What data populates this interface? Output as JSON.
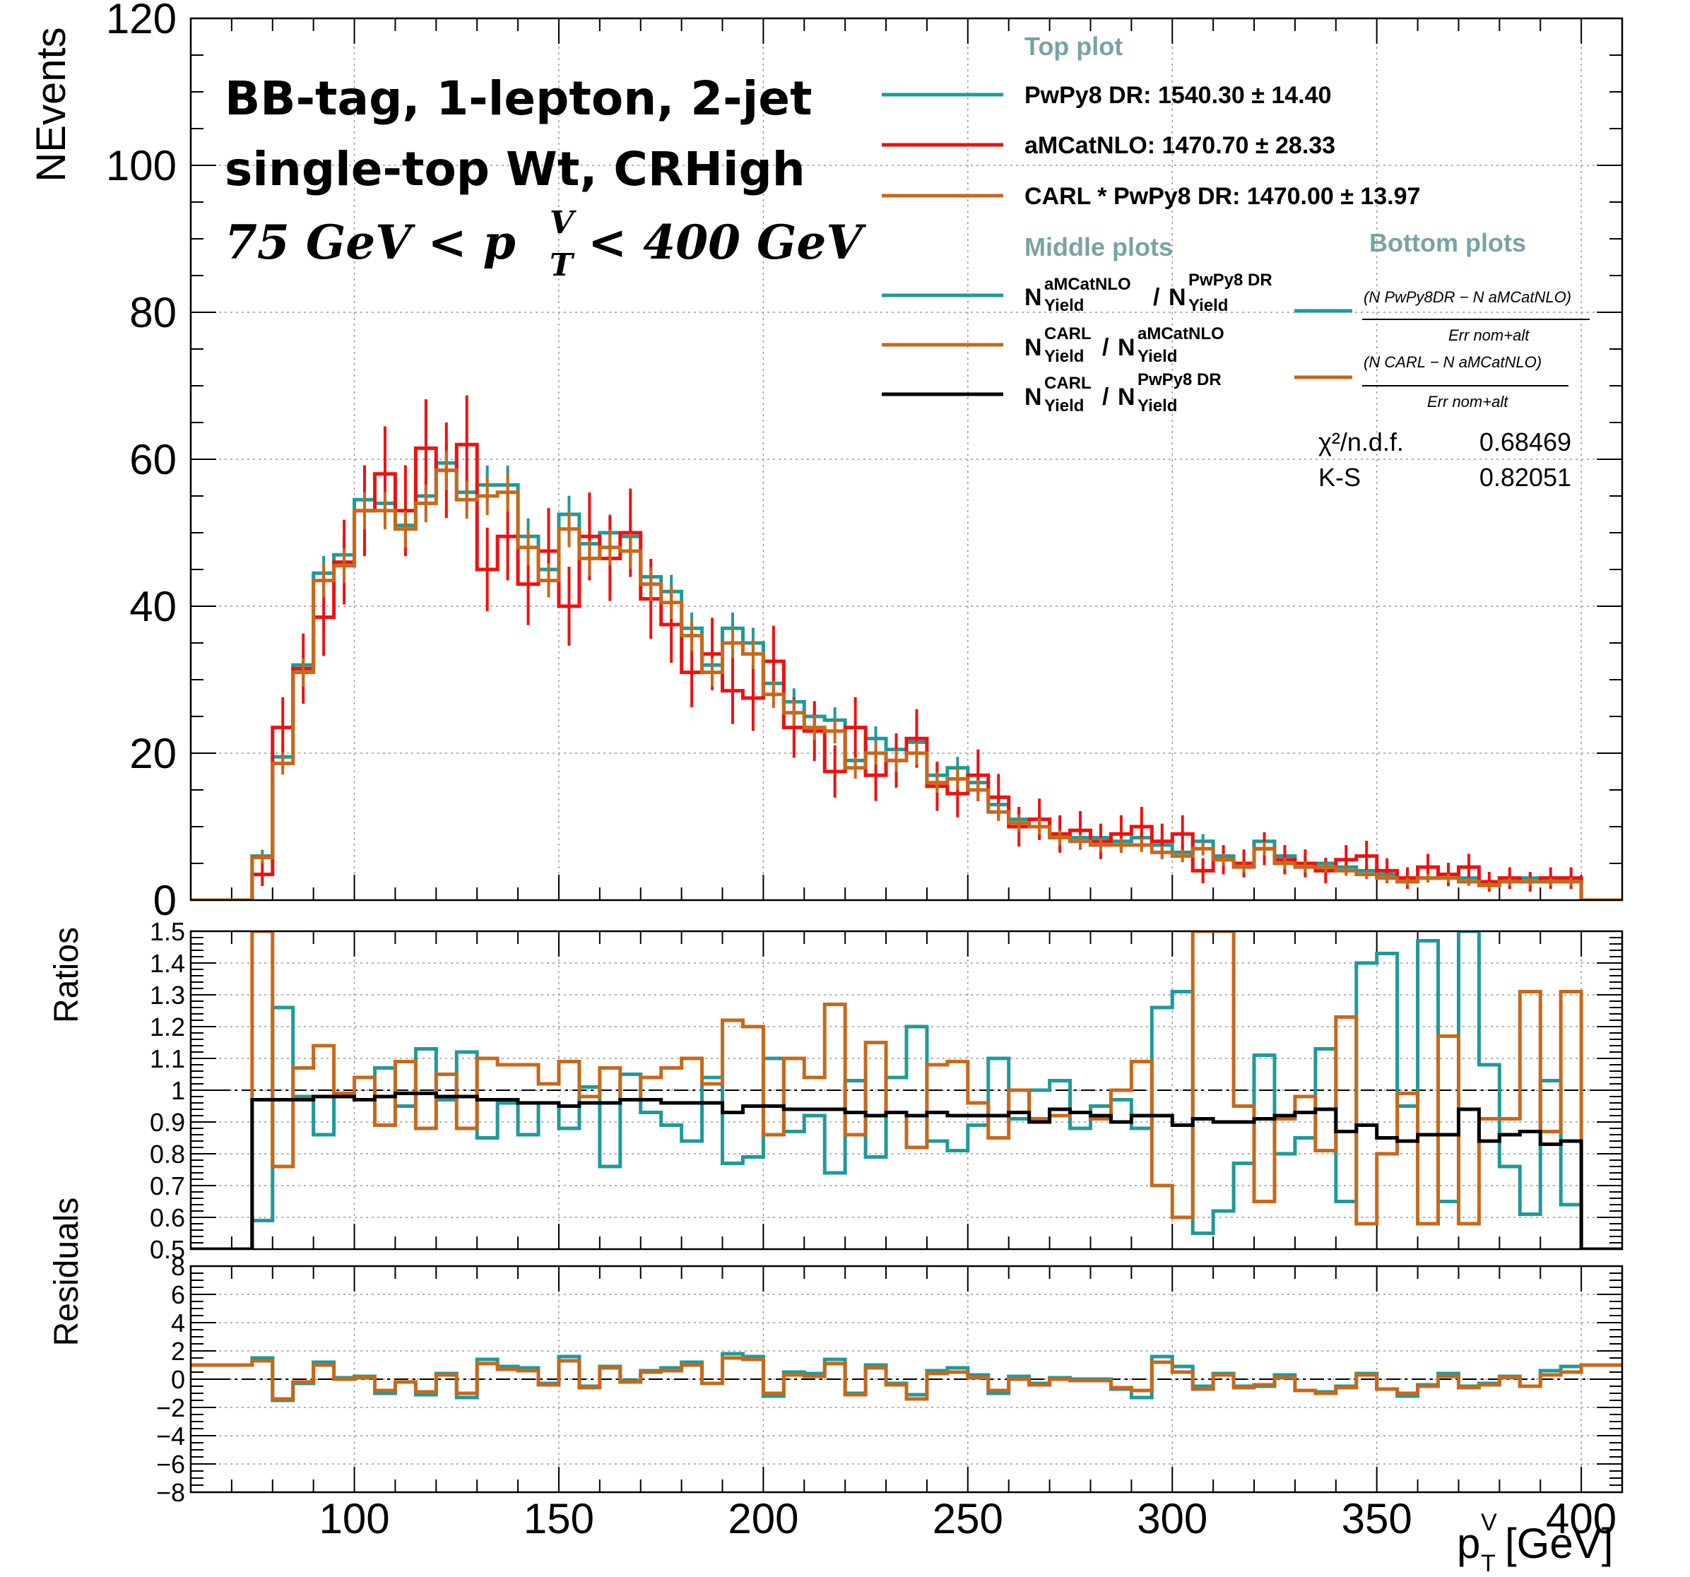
{
  "colors": {
    "pwpy8": "#1f9a9a",
    "amc": "#ee1111",
    "carl": "#c8681a",
    "black": "#000000",
    "legend_head": "#7aa3a3"
  },
  "annotation": {
    "line1": "BB-tag, 1-lepton, 2-jet",
    "line2": "single-top Wt, CRHigh",
    "line3a": "75 GeV <  p",
    "line3b": "< 400 GeV",
    "sup": "V",
    "sub": "T"
  },
  "legend": {
    "top_head": "Top plot",
    "top_items": [
      "PwPy8 DR: 1540.30 ± 14.40",
      "aMCatNLO: 1470.70 ± 28.33",
      "CARL * PwPy8 DR: 1470.00 ± 13.97"
    ],
    "middle_head": "Middle plots",
    "middle_items": [
      {
        "num_main": "N",
        "num_sup": "aMCatNLO",
        "num_sub": "Yield",
        "den_main": "N",
        "den_sup": "PwPy8 DR",
        "den_sub": "Yield"
      },
      {
        "num_main": "N",
        "num_sup": "CARL",
        "num_sub": "Yield",
        "den_main": "N",
        "den_sup": "aMCatNLO",
        "den_sub": "Yield"
      },
      {
        "num_main": "N",
        "num_sup": "CARL",
        "num_sub": "Yield",
        "den_main": "N",
        "den_sup": "PwPy8 DR",
        "den_sub": "Yield"
      }
    ],
    "bottom_head": "Bottom plots",
    "bottom_items": [
      {
        "num": "(N PwPy8DR − N aMCatNLO)",
        "den": "Err nom+alt"
      },
      {
        "num": "(N CARL − N aMCatNLO)",
        "den": "Err nom+alt"
      }
    ],
    "stats": [
      {
        "label": "χ²/n.d.f.",
        "value": "0.68469"
      },
      {
        "label": "K-S",
        "value": "0.82051"
      }
    ]
  },
  "chart_data": [
    {
      "type": "line",
      "panel": "top",
      "ylabel": "NEvents",
      "xlim": [
        60,
        410
      ],
      "ylim": [
        0,
        120
      ],
      "x_bin_edges": [
        75,
        80,
        85,
        90,
        95,
        100,
        105,
        110,
        115,
        120,
        125,
        130,
        135,
        140,
        145,
        150,
        155,
        160,
        165,
        170,
        175,
        180,
        185,
        190,
        195,
        200,
        205,
        210,
        215,
        220,
        225,
        230,
        235,
        240,
        245,
        250,
        255,
        260,
        265,
        270,
        275,
        280,
        285,
        290,
        295,
        300,
        305,
        310,
        315,
        320,
        325,
        330,
        335,
        340,
        345,
        350,
        355,
        360,
        365,
        370,
        375,
        380,
        385,
        390,
        395,
        400
      ],
      "yticks": [
        0,
        20,
        40,
        60,
        80,
        100,
        120
      ],
      "series": [
        {
          "name": "PwPy8 DR",
          "values": [
            6.0,
            19.5,
            32.0,
            44.5,
            47.0,
            54.5,
            54.0,
            51.0,
            55.0,
            59.5,
            55.5,
            56.5,
            56.5,
            49.5,
            45.0,
            52.5,
            48.5,
            50.0,
            49.5,
            44.0,
            42.0,
            37.0,
            32.0,
            37.0,
            35.0,
            29.5,
            27.0,
            25.0,
            24.5,
            19.0,
            22.0,
            20.5,
            21.5,
            17.0,
            18.0,
            16.0,
            13.0,
            11.0,
            11.0,
            9.0,
            8.5,
            8.5,
            8.0,
            8.5,
            7.5,
            6.5,
            8.0,
            6.0,
            5.0,
            8.0,
            6.0,
            5.0,
            5.0,
            4.5,
            4.0,
            3.5,
            3.0,
            3.0,
            3.5,
            3.0,
            2.5,
            3.0,
            3.0,
            3.0,
            3.0
          ]
        },
        {
          "name": "aMCatNLO",
          "values": [
            3.5,
            23.5,
            31.5,
            38.5,
            46.0,
            53.0,
            58.0,
            53.0,
            61.5,
            58.5,
            62.0,
            45.0,
            49.5,
            43.0,
            47.5,
            40.0,
            49.5,
            46.5,
            50.0,
            41.0,
            37.5,
            31.0,
            33.5,
            28.5,
            27.5,
            32.5,
            23.5,
            23.0,
            17.5,
            23.5,
            17.0,
            19.0,
            22.0,
            15.5,
            14.5,
            17.0,
            14.0,
            10.0,
            11.0,
            9.0,
            9.5,
            8.0,
            9.0,
            10.0,
            8.0,
            9.0,
            4.0,
            5.5,
            5.0,
            7.0,
            5.5,
            5.0,
            4.0,
            5.5,
            6.0,
            4.0,
            3.0,
            4.5,
            3.5,
            4.5,
            2.5,
            3.0,
            2.5,
            3.0,
            3.0
          ]
        },
        {
          "name": "CARL * PwPy8 DR",
          "values": [
            5.8,
            18.6,
            31.0,
            43.5,
            45.5,
            53.0,
            53.0,
            50.5,
            54.0,
            58.5,
            54.5,
            55.0,
            55.5,
            48.0,
            43.5,
            50.5,
            46.5,
            48.0,
            47.5,
            43.0,
            40.5,
            36.0,
            31.0,
            35.0,
            33.5,
            28.0,
            25.5,
            23.5,
            23.0,
            18.0,
            20.0,
            19.0,
            20.0,
            16.0,
            16.5,
            15.0,
            12.0,
            10.5,
            10.0,
            8.5,
            8.0,
            7.5,
            7.5,
            7.5,
            6.5,
            6.0,
            7.0,
            5.5,
            4.5,
            7.0,
            5.0,
            4.5,
            4.5,
            4.0,
            3.5,
            3.0,
            2.5,
            3.0,
            3.0,
            2.5,
            2.0,
            2.5,
            2.5,
            2.5,
            2.5
          ]
        }
      ]
    },
    {
      "type": "line",
      "panel": "middle",
      "ylabel": "Ratios",
      "xlim": [
        60,
        410
      ],
      "ylim": [
        0.5,
        1.5
      ],
      "yticks": [
        0.5,
        0.6,
        0.7,
        0.8,
        0.9,
        1,
        1.1,
        1.2,
        1.3,
        1.4,
        1.5
      ],
      "series": [
        {
          "name": "aMCatNLO / PwPy8 DR",
          "values": [
            0.59,
            1.26,
            0.98,
            0.86,
            0.98,
            0.97,
            1.07,
            0.95,
            1.13,
            0.97,
            1.12,
            0.85,
            0.96,
            0.86,
            0.96,
            0.88,
            1.01,
            0.76,
            1.05,
            0.93,
            0.89,
            0.84,
            1.04,
            0.77,
            0.79,
            1.1,
            0.87,
            0.92,
            0.74,
            1.03,
            0.79,
            1.04,
            1.2,
            0.84,
            0.81,
            0.89,
            1.1,
            0.91,
            1.0,
            1.03,
            0.88,
            0.95,
            0.97,
            0.88,
            1.26,
            1.31,
            0.55,
            0.62,
            0.77,
            1.11,
            0.8,
            0.85,
            1.13,
            0.65,
            1.4,
            1.43,
            0.95,
            1.47,
            0.65,
            1.91,
            1.08,
            0.76,
            0.61,
            1.03,
            0.64
          ]
        },
        {
          "name": "CARL / aMCatNLO",
          "values": [
            1.62,
            0.76,
            1.07,
            1.14,
            0.99,
            1.04,
            0.89,
            1.09,
            0.88,
            1.05,
            0.88,
            1.1,
            1.08,
            1.08,
            1.02,
            1.09,
            0.98,
            1.07,
            0.97,
            1.04,
            1.07,
            1.1,
            1.02,
            1.22,
            1.2,
            0.86,
            1.1,
            1.04,
            1.27,
            0.86,
            1.15,
            0.93,
            0.82,
            1.08,
            1.09,
            0.96,
            0.85,
            1.0,
            0.91,
            0.92,
            0.93,
            0.91,
            1.0,
            1.09,
            0.7,
            0.6,
            1.6,
            1.5,
            0.95,
            0.65,
            0.91,
            0.98,
            0.81,
            1.23,
            0.58,
            0.8,
            0.99,
            0.58,
            1.17,
            0.58,
            0.91,
            0.91,
            1.31,
            0.87,
            1.31
          ]
        },
        {
          "name": "CARL / PwPy8 DR",
          "values": [
            0.97,
            0.97,
            0.97,
            0.98,
            0.98,
            0.97,
            0.98,
            0.99,
            0.99,
            0.98,
            0.98,
            0.97,
            0.97,
            0.96,
            0.96,
            0.95,
            0.96,
            0.96,
            0.97,
            0.97,
            0.96,
            0.96,
            0.96,
            0.93,
            0.95,
            0.95,
            0.94,
            0.94,
            0.94,
            0.93,
            0.92,
            0.93,
            0.92,
            0.93,
            0.92,
            0.92,
            0.92,
            0.93,
            0.9,
            0.94,
            0.93,
            0.92,
            0.9,
            0.92,
            0.92,
            0.89,
            0.91,
            0.9,
            0.9,
            0.91,
            0.92,
            0.93,
            0.94,
            0.87,
            0.89,
            0.85,
            0.84,
            0.86,
            0.86,
            0.94,
            0.84,
            0.86,
            0.87,
            0.83,
            0.84
          ]
        }
      ]
    },
    {
      "type": "line",
      "panel": "bottom",
      "ylabel": "Residuals",
      "xlabel": "p_T^V [GeV]",
      "xlim": [
        60,
        410
      ],
      "ylim": [
        -8,
        8
      ],
      "yticks": [
        -8,
        -6,
        -4,
        -2,
        0,
        2,
        4,
        6,
        8
      ],
      "xticks": [
        100,
        150,
        200,
        250,
        300,
        350,
        400
      ],
      "series": [
        {
          "name": "(N PwPy8DR − N aMCatNLO)/Err",
          "values": [
            1.5,
            -1.5,
            -0.3,
            1.2,
            0.1,
            0.2,
            -1.0,
            -0.2,
            -1.1,
            0.4,
            -1.3,
            1.4,
            0.9,
            0.8,
            -0.3,
            1.6,
            -0.5,
            0.9,
            -0.1,
            0.6,
            0.8,
            1.2,
            -0.3,
            1.8,
            1.6,
            -1.2,
            0.5,
            0.4,
            1.4,
            -1.0,
            1.0,
            -0.3,
            -1.1,
            0.6,
            0.8,
            0.3,
            -1.0,
            0.2,
            -0.3,
            0.1,
            0.0,
            0.0,
            -0.7,
            -1.3,
            1.6,
            0.9,
            -0.5,
            0.4,
            -0.5,
            -0.5,
            0.3,
            -0.8,
            -0.9,
            -0.5,
            0.4,
            -0.7,
            -1.2,
            -0.4,
            0.4,
            -0.5,
            -0.3,
            0.2,
            -0.5,
            0.6,
            0.9
          ]
        },
        {
          "name": "(N CARL − N aMCatNLO)/Err",
          "values": [
            1.3,
            -1.4,
            -0.2,
            1.0,
            0.0,
            0.1,
            -0.8,
            -0.2,
            -0.9,
            0.3,
            -1.0,
            1.1,
            0.7,
            0.6,
            -0.4,
            1.3,
            -0.6,
            0.8,
            -0.2,
            0.5,
            0.6,
            1.0,
            -0.3,
            1.5,
            1.4,
            -1.0,
            0.3,
            0.2,
            1.1,
            -1.1,
            0.8,
            -0.4,
            -1.4,
            0.4,
            0.5,
            0.1,
            -0.8,
            0.0,
            -0.4,
            0.0,
            -0.1,
            -0.1,
            -0.6,
            -0.8,
            1.2,
            0.5,
            -0.7,
            0.3,
            -0.6,
            -0.4,
            0.1,
            -0.8,
            -1.0,
            -0.6,
            0.3,
            -0.7,
            -1.0,
            -0.5,
            0.2,
            -0.6,
            -0.4,
            0.1,
            -0.5,
            0.3,
            0.5
          ]
        }
      ]
    }
  ]
}
